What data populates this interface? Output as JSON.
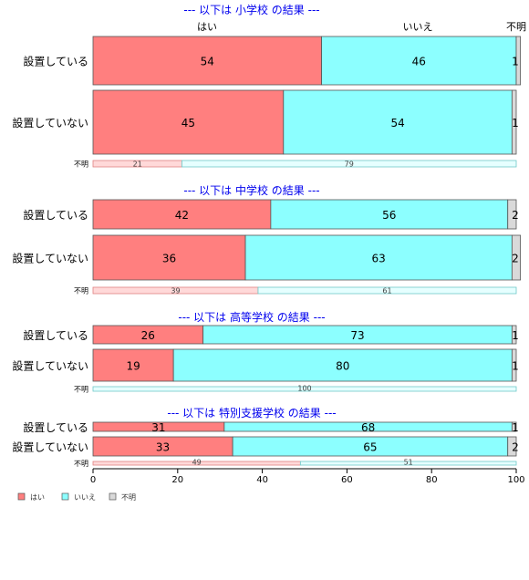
{
  "chart_data": {
    "type": "bar",
    "orientation": "horizontal-stacked-percent",
    "category_header_labels": [
      "はい",
      "いいえ",
      "不明"
    ],
    "legend": {
      "placement": "bottom-left",
      "items": [
        {
          "label": "はい",
          "color": "#FF7F7F"
        },
        {
          "label": "いいえ",
          "color": "#8CFFFF"
        },
        {
          "label": "不明",
          "color": "#D9D9D9"
        }
      ]
    },
    "colors": {
      "yes": "#FF7F7F",
      "no": "#8CFFFF",
      "unknown": "#D9D9D9",
      "title": "#0000EE"
    },
    "xlim": [
      0,
      100
    ],
    "x_ticks": [
      "0",
      "20",
      "40",
      "60",
      "80",
      "100"
    ],
    "panels": [
      {
        "title": "--- 以下は 小学校 の結果 ---",
        "rows": [
          {
            "label": "設置している",
            "values": [
              54,
              46,
              1
            ]
          },
          {
            "label": "設置していない",
            "values": [
              45,
              54,
              1
            ]
          },
          {
            "label": "不明",
            "values": [
              21,
              79,
              0
            ]
          }
        ]
      },
      {
        "title": "--- 以下は 中学校 の結果 ---",
        "rows": [
          {
            "label": "設置している",
            "values": [
              42,
              56,
              2
            ]
          },
          {
            "label": "設置していない",
            "values": [
              36,
              63,
              2
            ]
          },
          {
            "label": "不明",
            "values": [
              39,
              61,
              0
            ]
          }
        ]
      },
      {
        "title": "--- 以下は 高等学校 の結果 ---",
        "rows": [
          {
            "label": "設置している",
            "values": [
              26,
              73,
              1
            ]
          },
          {
            "label": "設置していない",
            "values": [
              19,
              80,
              1
            ]
          },
          {
            "label": "不明",
            "values": [
              0,
              100,
              0
            ]
          }
        ]
      },
      {
        "title": "--- 以下は 特別支援学校 の結果 ---",
        "rows": [
          {
            "label": "設置している",
            "values": [
              31,
              68,
              1
            ]
          },
          {
            "label": "設置していない",
            "values": [
              33,
              65,
              2
            ]
          },
          {
            "label": "不明",
            "values": [
              49,
              51,
              0
            ]
          }
        ]
      }
    ]
  }
}
